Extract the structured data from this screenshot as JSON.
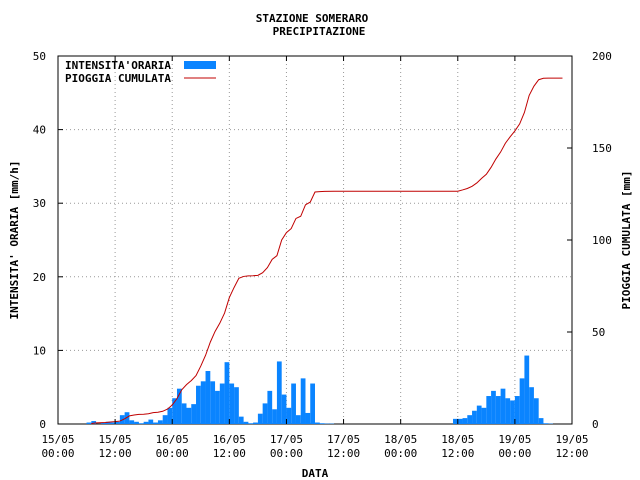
{
  "chart_data": {
    "type": "bar+line",
    "title_line1": "STAZIONE SOMERARO",
    "title_line2": "PRECIPITAZIONE",
    "xlabel": "DATA",
    "ylabel_left": "INTENSITA' ORARIA [mm/h]",
    "ylabel_right": "PIOGGIA CUMULATA [mm]",
    "ylim_left": [
      0,
      50
    ],
    "ylim_right": [
      0,
      200
    ],
    "yticks_left": [
      0,
      10,
      20,
      30,
      40,
      50
    ],
    "yticks_right": [
      0,
      50,
      100,
      150,
      200
    ],
    "xlim_hours": [
      0,
      108
    ],
    "xticks": [
      {
        "l1": "15/05",
        "l2": "00:00",
        "h": 0
      },
      {
        "l1": "15/05",
        "l2": "12:00",
        "h": 12
      },
      {
        "l1": "16/05",
        "l2": "00:00",
        "h": 24
      },
      {
        "l1": "16/05",
        "l2": "12:00",
        "h": 36
      },
      {
        "l1": "17/05",
        "l2": "00:00",
        "h": 48
      },
      {
        "l1": "17/05",
        "l2": "12:00",
        "h": 60
      },
      {
        "l1": "18/05",
        "l2": "00:00",
        "h": 72
      },
      {
        "l1": "18/05",
        "l2": "12:00",
        "h": 84
      },
      {
        "l1": "19/05",
        "l2": "00:00",
        "h": 96
      },
      {
        "l1": "19/05",
        "l2": "12:00",
        "h": 108
      }
    ],
    "grid": true,
    "legend_position": "top-left",
    "series": [
      {
        "name": "INTENSITA'ORARIA",
        "type": "bar",
        "color": "#0a84ff",
        "hours": [
          7,
          8,
          10,
          11,
          12,
          13,
          14,
          15,
          16,
          17,
          18,
          19,
          20,
          21,
          22,
          23,
          24,
          25,
          26,
          27,
          28,
          29,
          30,
          31,
          32,
          33,
          34,
          35,
          36,
          37,
          38,
          39,
          40,
          41,
          42,
          43,
          44,
          45,
          46,
          47,
          48,
          49,
          50,
          51,
          52,
          53,
          54,
          55,
          56,
          57,
          58,
          84,
          85,
          86,
          87,
          88,
          89,
          90,
          91,
          92,
          93,
          94,
          95,
          96,
          97,
          98,
          99,
          100,
          101,
          102,
          103,
          104
        ],
        "values": [
          0.2,
          0.4,
          0.2,
          0.3,
          0.2,
          0.3,
          1.2,
          1.6,
          0.5,
          0.3,
          0.1,
          0.3,
          0.6,
          0.2,
          0.5,
          1.2,
          2.2,
          3.5,
          4.8,
          2.8,
          2.2,
          2.7,
          5.2,
          5.8,
          7.2,
          5.8,
          4.5,
          5.5,
          8.4,
          5.5,
          5.0,
          1.0,
          0.3,
          0.1,
          0.2,
          1.4,
          2.8,
          4.5,
          2.0,
          8.5,
          4.0,
          2.2,
          5.5,
          1.2,
          6.2,
          1.5,
          5.5,
          0.2,
          0.1,
          0.05,
          0.05,
          0.7,
          0.7,
          0.8,
          1.2,
          1.8,
          2.5,
          2.2,
          3.8,
          4.5,
          3.8,
          4.8,
          3.5,
          3.2,
          3.8,
          6.2,
          9.3,
          5.0,
          3.5,
          0.8,
          0.1,
          0.05
        ]
      },
      {
        "name": "PIOGGIA CUMULATA",
        "type": "line",
        "color": "#c00000",
        "points": [
          [
            7,
            0.2
          ],
          [
            8,
            0.6
          ],
          [
            10,
            0.8
          ],
          [
            11,
            1.1
          ],
          [
            12,
            1.3
          ],
          [
            13,
            1.6
          ],
          [
            14,
            2.8
          ],
          [
            15,
            4.4
          ],
          [
            16,
            4.9
          ],
          [
            17,
            5.2
          ],
          [
            18,
            5.3
          ],
          [
            19,
            5.6
          ],
          [
            20,
            6.2
          ],
          [
            21,
            6.4
          ],
          [
            22,
            6.9
          ],
          [
            23,
            8.1
          ],
          [
            24,
            10.3
          ],
          [
            25,
            13.8
          ],
          [
            26,
            18.6
          ],
          [
            27,
            21.4
          ],
          [
            28,
            23.6
          ],
          [
            29,
            26.3
          ],
          [
            30,
            31.5
          ],
          [
            31,
            37.3
          ],
          [
            32,
            44.5
          ],
          [
            33,
            50.3
          ],
          [
            34,
            54.8
          ],
          [
            35,
            60.3
          ],
          [
            36,
            68.7
          ],
          [
            37,
            74.2
          ],
          [
            38,
            79.2
          ],
          [
            39,
            80.2
          ],
          [
            40,
            80.5
          ],
          [
            41,
            80.6
          ],
          [
            42,
            80.8
          ],
          [
            43,
            82.2
          ],
          [
            44,
            85.0
          ],
          [
            45,
            89.5
          ],
          [
            46,
            91.5
          ],
          [
            47,
            100.0
          ],
          [
            48,
            104.0
          ],
          [
            49,
            106.2
          ],
          [
            50,
            111.7
          ],
          [
            51,
            112.9
          ],
          [
            52,
            119.1
          ],
          [
            53,
            120.6
          ],
          [
            54,
            126.1
          ],
          [
            55,
            126.3
          ],
          [
            56,
            126.4
          ],
          [
            58,
            126.5
          ],
          [
            84,
            126.5
          ],
          [
            85,
            127.2
          ],
          [
            86,
            128.0
          ],
          [
            87,
            129.2
          ],
          [
            88,
            131.0
          ],
          [
            89,
            133.5
          ],
          [
            90,
            135.7
          ],
          [
            91,
            139.5
          ],
          [
            92,
            144.0
          ],
          [
            93,
            147.8
          ],
          [
            94,
            152.6
          ],
          [
            95,
            156.1
          ],
          [
            96,
            159.3
          ],
          [
            97,
            163.1
          ],
          [
            98,
            169.3
          ],
          [
            99,
            178.6
          ],
          [
            100,
            183.6
          ],
          [
            101,
            187.1
          ],
          [
            102,
            187.9
          ],
          [
            103,
            188.0
          ],
          [
            104,
            188.0
          ],
          [
            106,
            188.0
          ]
        ]
      }
    ]
  }
}
